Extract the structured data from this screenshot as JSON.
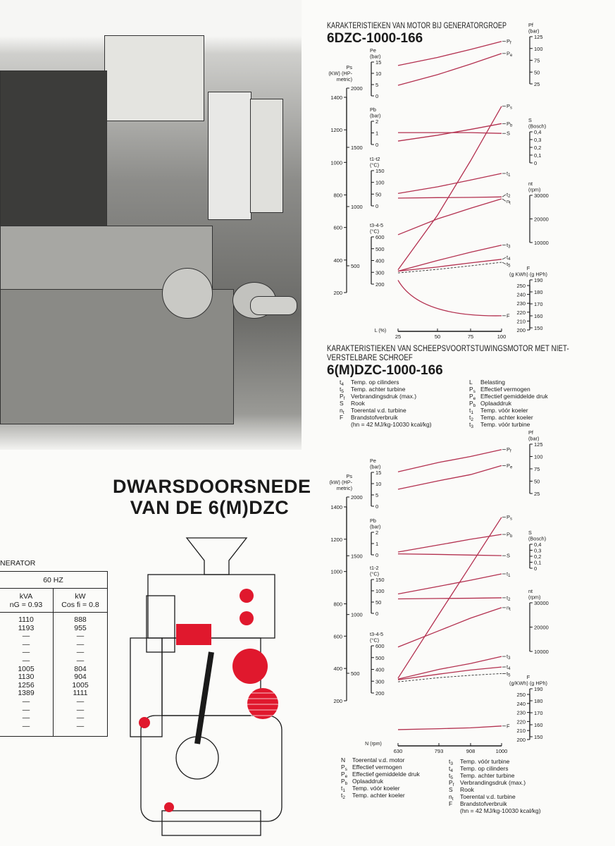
{
  "title": {
    "line1": "DWARSDOORSNEDE",
    "line2": "VAN DE 6(M)DZC"
  },
  "generator_table": {
    "caption": "NERATOR",
    "group_header": "60 HZ",
    "columns": [
      {
        "line1": "kVA",
        "line2": "nG = 0.93"
      },
      {
        "line1": "kW",
        "line2": "Cos fi = 0.8"
      }
    ],
    "rows": [
      [
        "1110",
        "888"
      ],
      [
        "1193",
        "955"
      ],
      [
        "—",
        "—"
      ],
      [
        "—",
        "—"
      ],
      [
        "—",
        "—"
      ],
      [
        "—",
        "—"
      ],
      [
        "1005",
        "804"
      ],
      [
        "1130",
        "904"
      ],
      [
        "1256",
        "1005"
      ],
      [
        "1389",
        "1111"
      ],
      [
        "—",
        "—"
      ],
      [
        "—",
        "—"
      ],
      [
        "—",
        "—"
      ],
      [
        "—",
        "—"
      ]
    ]
  },
  "section_top": {
    "heading": "KARAKTERISTIEKEN VAN MOTOR BIJ GENERATORGROEP",
    "model": "6DZC-1000-166"
  },
  "section_bottom": {
    "heading_line1": "KARAKTERISTIEKEN VAN SCHEEPSVOORTSTUWINGSMOTOR MET NIET-",
    "heading_line2": "VERSTELBARE SCHROEF",
    "model": "6(M)DZC-1000-166"
  },
  "legend_middle": {
    "left": [
      [
        "t4",
        "Temp. op cilinders"
      ],
      [
        "t5",
        "Temp. achter turbine"
      ],
      [
        "Pf",
        "Verbrandingsdruk (max.)"
      ],
      [
        "S",
        "Rook"
      ],
      [
        "nt",
        "Toerental v.d. turbine"
      ],
      [
        "F",
        "Brandstofverbruik"
      ],
      [
        "",
        "(hn = 42 MJ/kg-10030 kcal/kg)"
      ]
    ],
    "right": [
      [
        "L",
        "Belasting"
      ],
      [
        "Ps",
        "Effectief vermogen"
      ],
      [
        "Pe",
        "Effectief gemiddelde druk"
      ],
      [
        "Pb",
        "Oplaaddruk"
      ],
      [
        "t1",
        "Temp. vóór koeler"
      ],
      [
        "t2",
        "Temp. achter koeler"
      ],
      [
        "t3",
        "Temp. vóór turbine"
      ]
    ]
  },
  "legend_bottom": {
    "left": [
      [
        "N",
        "Toerental v.d. motor"
      ],
      [
        "Ps",
        "Effectief vermogen"
      ],
      [
        "Pe",
        "Effectief gemiddelde druk"
      ],
      [
        "Pb",
        "Oplaaddruk"
      ],
      [
        "t1",
        "Temp. vóór koeler"
      ],
      [
        "t2",
        "Temp. achter koeler"
      ]
    ],
    "right": [
      [
        "t3",
        "Temp. vóór turbine"
      ],
      [
        "t4",
        "Temp. op cilinders"
      ],
      [
        "t5",
        "Temp. achter turbine"
      ],
      [
        "Pf",
        "Verbrandingsdruk (max.)"
      ],
      [
        "S",
        "Rook"
      ],
      [
        "nt",
        "Toerental v.d. turbine"
      ],
      [
        "F",
        "Brandstofverbruik"
      ],
      [
        "",
        "(hn = 42 MJ/kg-10030 kcal/kg)"
      ]
    ]
  },
  "colors": {
    "curve": "#b3304f",
    "axis": "#1a1a1a",
    "section_red": "#e0182d"
  },
  "chart_data": [
    {
      "type": "line",
      "title": "KARAKTERISTIEKEN VAN MOTOR BIJ GENERATORGROEP 6DZC-1000-166",
      "xlabel": "L (%)",
      "x_ticks": [
        25,
        50,
        75,
        100
      ],
      "x": [
        25,
        50,
        75,
        100
      ],
      "axes": {
        "pe": {
          "label": [
            "Pe",
            "(bar)"
          ],
          "ticks": [
            15,
            10,
            5,
            0
          ]
        },
        "ps_kw": {
          "label": [
            "Ps",
            "(KW) (HP-",
            "metric)"
          ],
          "ticks": [
            1400,
            1200,
            1000,
            800,
            600,
            400,
            200
          ]
        },
        "ps_hp": {
          "label": [],
          "ticks": [
            2000,
            1500,
            1000,
            500
          ]
        },
        "pb": {
          "label": [
            "Pb",
            "(bar)"
          ],
          "ticks": [
            2,
            1,
            0
          ]
        },
        "t12": {
          "label": [
            "t1-t2",
            "(°C)"
          ],
          "ticks": [
            150,
            100,
            50,
            0
          ]
        },
        "t345": {
          "label": [
            "t3-4-5",
            "(°C)"
          ],
          "ticks": [
            600,
            500,
            400,
            300,
            200
          ]
        },
        "pf": {
          "label": [
            "Pf",
            "(bar)"
          ],
          "ticks": [
            125,
            100,
            75,
            50,
            25
          ]
        },
        "s": {
          "label": [
            "S",
            "(Bosch)"
          ],
          "ticks": [
            "0,4",
            "0,3",
            "0,2",
            "0,1",
            "0"
          ]
        },
        "nt": {
          "label": [
            "nt",
            "(rpm)"
          ],
          "ticks": [
            30000,
            20000,
            10000
          ]
        },
        "f_kwh": {
          "label": [
            "F",
            "(g KWh) (g HPh)"
          ],
          "ticks": [
            250,
            240,
            230,
            220,
            210,
            200
          ]
        },
        "f_hph": {
          "label": [],
          "ticks": [
            190,
            180,
            170,
            160,
            150
          ]
        }
      },
      "series": [
        {
          "name": "Pf",
          "axis": "pf",
          "values": [
            64,
            81,
            98,
            115
          ]
        },
        {
          "name": "Pe",
          "axis": "pe",
          "values": [
            4.7,
            9.4,
            14.1,
            18.8
          ]
        },
        {
          "name": "Ps",
          "axis": "ps_kw",
          "values": [
            340,
            675,
            1010,
            1345
          ]
        },
        {
          "name": "Pb",
          "axis": "pb",
          "values": [
            0.3,
            0.8,
            1.3,
            1.8
          ]
        },
        {
          "name": "S",
          "axis": "s",
          "values": [
            0.39,
            0.39,
            0.39,
            0.38
          ]
        },
        {
          "name": "t1",
          "axis": "t12",
          "values": [
            53,
            81,
            110,
            138
          ]
        },
        {
          "name": "t2",
          "axis": "t12",
          "values": [
            33,
            35,
            36,
            38
          ]
        },
        {
          "name": "nt",
          "axis": "nt",
          "values": [
            13300,
            20000,
            24500,
            28500
          ]
        },
        {
          "name": "t3",
          "axis": "t345",
          "values": [
            310,
            400,
            470,
            530
          ]
        },
        {
          "name": "t4",
          "axis": "t345",
          "values": [
            310,
            345,
            380,
            410
          ]
        },
        {
          "name": "t5",
          "axis": "t345",
          "values": [
            295,
            325,
            355,
            385
          ],
          "dashed": true
        },
        {
          "name": "F",
          "axis": "f_kwh",
          "values": [
            256,
            230,
            218,
            216
          ]
        }
      ]
    },
    {
      "type": "line",
      "title": "KARAKTERISTIEKEN VAN SCHEEPSVOORTSTUWINGSMOTOR MET NIET-VERSTELBARE SCHROEF 6(M)DZC-1000-166",
      "xlabel": "N (rpm)",
      "x_ticks": [
        630,
        793,
        908,
        1000
      ],
      "x": [
        630,
        793,
        908,
        1000
      ],
      "axes": {
        "pe": {
          "label": [
            "Pe",
            "(bar)"
          ],
          "ticks": [
            15,
            10,
            5,
            0
          ]
        },
        "ps_kw": {
          "label": [
            "Ps",
            "(kW) (HP-",
            "metric)"
          ],
          "ticks": [
            1400,
            1200,
            1000,
            800,
            600,
            400,
            200
          ]
        },
        "ps_hp": {
          "label": [],
          "ticks": [
            2000,
            1500,
            1000,
            500
          ]
        },
        "pb": {
          "label": [
            "Pb",
            "(bar)"
          ],
          "ticks": [
            2,
            1,
            0
          ]
        },
        "t12": {
          "label": [
            "t1-2",
            "(°C)"
          ],
          "ticks": [
            150,
            100,
            50,
            0
          ]
        },
        "t345": {
          "label": [
            "t3-4-5",
            "(°C)"
          ],
          "ticks": [
            600,
            500,
            400,
            300,
            200
          ]
        },
        "pf": {
          "label": [
            "Pf",
            "(bar)"
          ],
          "ticks": [
            125,
            100,
            75,
            50,
            25
          ]
        },
        "s": {
          "label": [
            "S",
            "(Bosch)"
          ],
          "ticks": [
            "0,4",
            "0,3",
            "0,2",
            "0,1",
            "0"
          ]
        },
        "nt": {
          "label": [
            "nt",
            "(rpm)"
          ],
          "ticks": [
            30000,
            20000,
            10000
          ]
        },
        "f_kwh": {
          "label": [
            "F",
            "(g/KWh) (g HPh)"
          ],
          "ticks": [
            250,
            240,
            230,
            220,
            210,
            200
          ]
        },
        "f_hph": {
          "label": [],
          "ticks": [
            190,
            180,
            170,
            160,
            150
          ]
        }
      },
      "series": [
        {
          "name": "Pf",
          "axis": "pf",
          "values": [
            69,
            88,
            100,
            114
          ]
        },
        {
          "name": "Pe",
          "axis": "pe",
          "values": [
            7.5,
            11.3,
            14,
            18
          ]
        },
        {
          "name": "Ps",
          "axis": "ps_kw",
          "values": [
            340,
            735,
            1038,
            1336
          ]
        },
        {
          "name": "Pb",
          "axis": "pb",
          "values": [
            0.25,
            0.88,
            1.38,
            1.81
          ]
        },
        {
          "name": "S",
          "axis": "s",
          "values": [
            0.24,
            0.23,
            0.22,
            0.21
          ]
        },
        {
          "name": "t1",
          "axis": "t12",
          "values": [
            86,
            120,
            147,
            175
          ]
        },
        {
          "name": "t2",
          "axis": "t12",
          "values": [
            64,
            66,
            67,
            69
          ]
        },
        {
          "name": "nt",
          "axis": "nt",
          "values": [
            11800,
            18500,
            23700,
            28000
          ]
        },
        {
          "name": "t3",
          "axis": "t345",
          "values": [
            318,
            400,
            450,
            510
          ]
        },
        {
          "name": "t4",
          "axis": "t345",
          "values": [
            312,
            360,
            395,
            420
          ]
        },
        {
          "name": "t5",
          "axis": "t345",
          "values": [
            295,
            330,
            350,
            365
          ],
          "dashed": true
        },
        {
          "name": "F",
          "axis": "f_kwh",
          "values": [
            211,
            212,
            213,
            215
          ]
        }
      ]
    }
  ]
}
